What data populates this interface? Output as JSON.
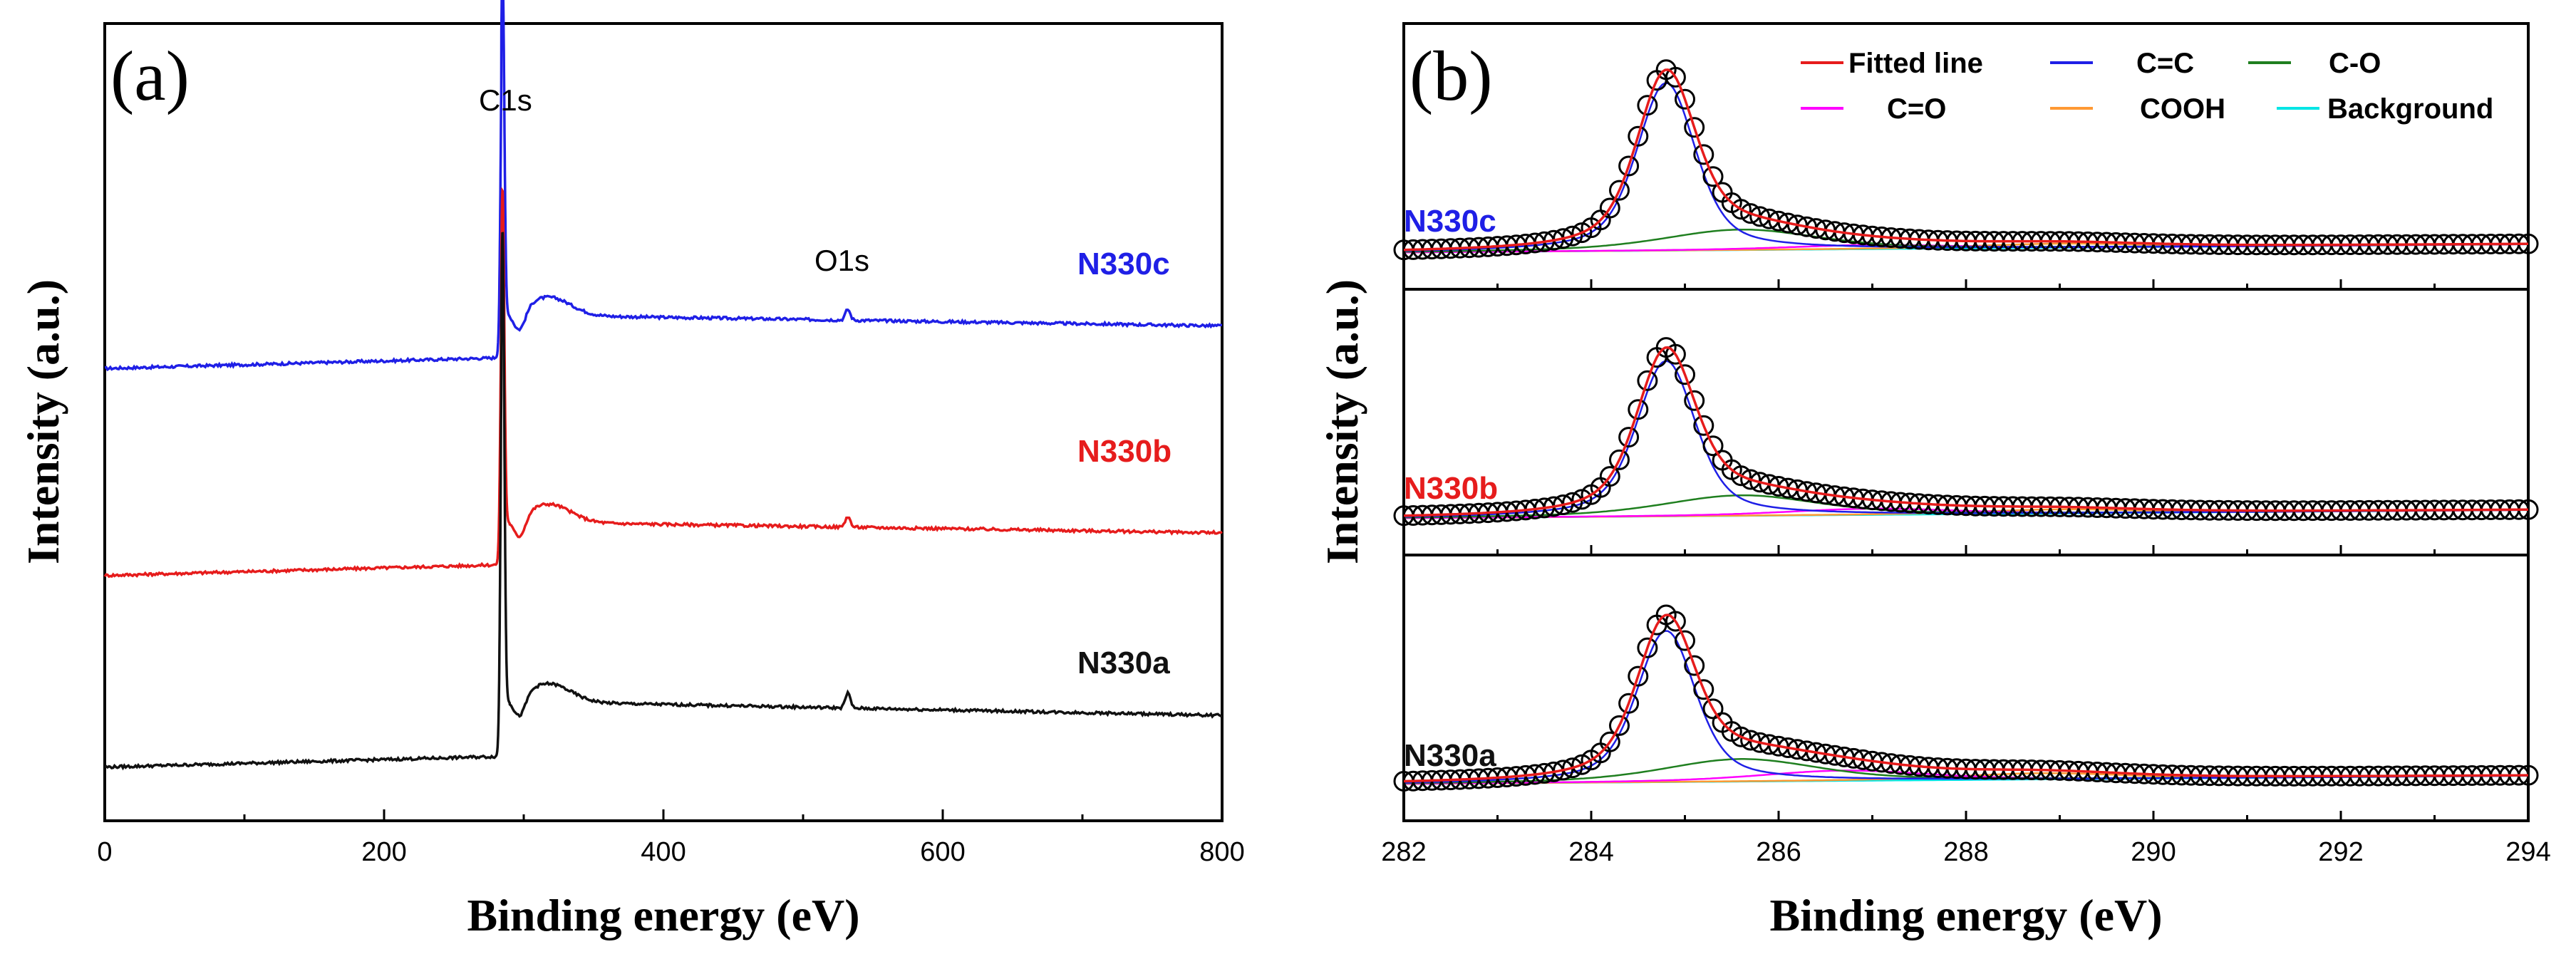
{
  "chart_data": [
    {
      "id": "a",
      "type": "line",
      "panel_label": "(a)",
      "xlabel": "Binding energy (eV)",
      "ylabel": "Intensity (a.u.)",
      "xlim": [
        0,
        800
      ],
      "xticks": [
        0,
        200,
        400,
        600,
        800
      ],
      "yticks_shown": false,
      "peak_annotations": [
        {
          "text": "C1s",
          "x": 284.8
        },
        {
          "text": "O1s",
          "x": 532
        }
      ],
      "series": [
        {
          "name": "N330c",
          "color": "#1f1fe6",
          "offset": 2.6,
          "pre_edge": 0.07,
          "edge_jump": 0.28,
          "peak_height": 2.25,
          "o1s_height": 0.07,
          "tail_slope": 0.00014
        },
        {
          "name": "N330b",
          "color": "#e61c1c",
          "offset": 1.25,
          "pre_edge": 0.07,
          "edge_jump": 0.28,
          "peak_height": 2.15,
          "o1s_height": 0.07,
          "tail_slope": 0.00014
        },
        {
          "name": "N330a",
          "color": "#111111",
          "offset": 0.0,
          "pre_edge": 0.07,
          "edge_jump": 0.36,
          "peak_height": 3.05,
          "o1s_height": 0.1,
          "tail_slope": 0.00018
        }
      ]
    },
    {
      "id": "b",
      "type": "line",
      "panel_label": "(b)",
      "xlabel": "Binding energy (eV)",
      "ylabel": "Intensity (a.u.)",
      "xlim": [
        282,
        294
      ],
      "xticks": [
        282,
        284,
        286,
        288,
        290,
        292,
        294
      ],
      "yticks_shown": false,
      "legend": {
        "position": "top-right",
        "entries": [
          {
            "label": "Fitted line",
            "color": "#e61c1c"
          },
          {
            "label": "C=C",
            "color": "#1f1fe6"
          },
          {
            "label": "C-O",
            "color": "#1f7f1f"
          },
          {
            "label": "C=O",
            "color": "#ff00ff"
          },
          {
            "label": "COOH",
            "color": "#ff9933"
          },
          {
            "label": "Background",
            "color": "#00e5e5"
          }
        ]
      },
      "subplots": [
        {
          "name": "N330c",
          "label_color": "#1f1fe6",
          "components": {
            "C=C": {
              "center": 284.8,
              "height": 0.82,
              "width": 0.42
            },
            "C-O": {
              "center": 285.6,
              "height": 0.1,
              "width": 1.1
            },
            "C=O": {
              "center": 287.0,
              "height": 0.02,
              "width": 1.2
            },
            "COOH": {
              "center": 289.0,
              "height": 0.02,
              "width": 1.2
            },
            "background": {
              "start": 0.0,
              "end": 0.04
            }
          },
          "experimental_markers": "open circles"
        },
        {
          "name": "N330b",
          "label_color": "#e61c1c",
          "components": {
            "C=C": {
              "center": 284.8,
              "height": 0.76,
              "width": 0.42
            },
            "C-O": {
              "center": 285.6,
              "height": 0.1,
              "width": 1.1
            },
            "C=O": {
              "center": 287.0,
              "height": 0.03,
              "width": 1.2
            },
            "COOH": {
              "center": 289.0,
              "height": 0.02,
              "width": 1.2
            },
            "background": {
              "start": 0.0,
              "end": 0.04
            }
          },
          "experimental_markers": "open circles"
        },
        {
          "name": "N330a",
          "label_color": "#111111",
          "components": {
            "C=C": {
              "center": 284.8,
              "height": 0.74,
              "width": 0.42
            },
            "C-O": {
              "center": 285.6,
              "height": 0.11,
              "width": 1.1
            },
            "C=O": {
              "center": 286.7,
              "height": 0.05,
              "width": 1.2
            },
            "COOH": {
              "center": 288.8,
              "height": 0.03,
              "width": 1.2
            },
            "background": {
              "start": 0.0,
              "end": 0.04
            }
          },
          "experimental_markers": "open circles"
        }
      ]
    }
  ]
}
